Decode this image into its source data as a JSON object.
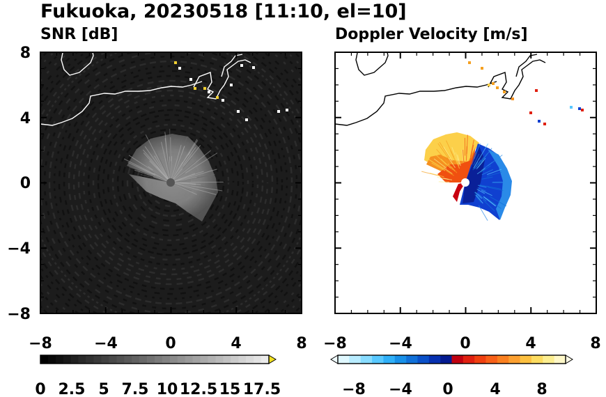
{
  "title": "Fukuoka, 20230518 [11:10, el=10]",
  "chart_data": [
    {
      "type": "heatmap",
      "title": "SNR [dB]",
      "xlim": [
        -8,
        8
      ],
      "ylim": [
        -8,
        8
      ],
      "xticks": [
        "−8",
        "−4",
        "0",
        "4",
        "8"
      ],
      "yticks": [
        "8",
        "4",
        "0",
        "−4",
        "−8"
      ],
      "xtick_values": [
        -8,
        -4,
        0,
        4,
        8
      ],
      "ytick_values": [
        8,
        4,
        0,
        -4,
        -8
      ],
      "background": "#1c1c1c",
      "colorbar": {
        "range": [
          0,
          18.75
        ],
        "levels": 30,
        "labels": [
          "0",
          "2.5",
          "5",
          "7.5",
          "10",
          "12.5",
          "15",
          "17.5"
        ],
        "label_values": [
          0,
          2.5,
          5,
          7.5,
          10,
          12.5,
          15,
          17.5
        ],
        "extend": "max",
        "extend_color": "#f0e020"
      }
    },
    {
      "type": "heatmap",
      "title": "Doppler Velocity [m/s]",
      "xlim": [
        -8,
        8
      ],
      "ylim": [
        -8,
        8
      ],
      "xticks": [
        "−8",
        "−4",
        "0",
        "4",
        "8"
      ],
      "yticks": [
        "8",
        "4",
        "0",
        "−4",
        "−8"
      ],
      "xtick_values": [
        -8,
        -4,
        0,
        4,
        8
      ],
      "ytick_values": [
        8,
        4,
        0,
        -4,
        -8
      ],
      "background": "#ffffff",
      "colorbar": {
        "range": [
          -10,
          10
        ],
        "labels": [
          "−8",
          "−4",
          "0",
          "4",
          "8"
        ],
        "label_values": [
          -8,
          -4,
          0,
          4,
          8
        ],
        "extend": "both",
        "colors": [
          "#e0f8ff",
          "#b8ecff",
          "#88dcff",
          "#58c8ff",
          "#30b0f8",
          "#1890e8",
          "#1070d8",
          "#0a50c8",
          "#0630b0",
          "#041a90",
          "#c00010",
          "#e02010",
          "#f04010",
          "#f86018",
          "#fa8020",
          "#fca030",
          "#fcc040",
          "#fcdc60",
          "#fcee90",
          "#fff8c8"
        ]
      }
    }
  ]
}
